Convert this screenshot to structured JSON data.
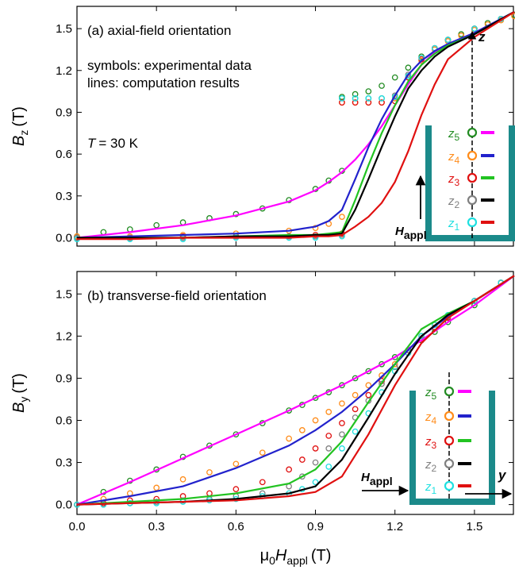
{
  "chart_data": [
    {
      "type": "line",
      "title": "(a) axial-field orientation",
      "annotations": [
        "symbols: experimental data",
        "lines: computation results"
      ],
      "temperature": {
        "symbol": "T",
        "text": "= 30 K"
      },
      "y_label": {
        "symbol": "B",
        "sub": "z",
        "unit": "(T)"
      },
      "xlim": [
        0,
        1.65
      ],
      "ylim": [
        -0.06,
        1.66
      ],
      "xticks": [
        {
          "value": 0,
          "label": "0.0"
        },
        0.3,
        0.6,
        0.9,
        1.2,
        1.5
      ],
      "xtick_labels": false,
      "yticks": [
        {
          "value": 0,
          "label": "0.0"
        },
        0.3,
        0.6,
        0.9,
        1.2,
        1.5
      ],
      "series": [
        {
          "style": "symbols",
          "color": "#228b22",
          "x": [
            0,
            0.1,
            0.2,
            0.3,
            0.4,
            0.5,
            0.6,
            0.7,
            0.8,
            0.9,
            0.95,
            1.0,
            1.0,
            1.05,
            1.1,
            1.15,
            1.2,
            1.25,
            1.3,
            1.35,
            1.4,
            1.45,
            1.5,
            1.55,
            1.6,
            1.65
          ],
          "values": [
            0.01,
            0.04,
            0.06,
            0.09,
            0.11,
            0.14,
            0.17,
            0.21,
            0.27,
            0.35,
            0.41,
            0.48,
            1.01,
            1.03,
            1.05,
            1.09,
            1.15,
            1.22,
            1.3,
            1.36,
            1.42,
            1.46,
            1.5,
            1.54,
            1.57,
            1.6
          ]
        },
        {
          "style": "symbols",
          "color": "#ff8c1a",
          "x": [
            0,
            0.2,
            0.4,
            0.6,
            0.8,
            0.9,
            0.95,
            1.0,
            1.0,
            1.05,
            1.1,
            1.15,
            1.2,
            1.25,
            1.3,
            1.35,
            1.4,
            1.45,
            1.5,
            1.55,
            1.6,
            1.65
          ],
          "values": [
            0.01,
            0.01,
            0.02,
            0.03,
            0.05,
            0.07,
            0.1,
            0.15,
            0.97,
            0.97,
            0.97,
            0.97,
            1.0,
            1.15,
            1.27,
            1.35,
            1.41,
            1.45,
            1.49,
            1.53,
            1.56,
            1.59
          ]
        },
        {
          "style": "symbols",
          "color": "#e01010",
          "x": [
            0,
            0.2,
            0.4,
            0.6,
            0.8,
            0.9,
            1.0,
            1.0,
            1.05,
            1.1,
            1.15,
            1.2,
            1.25,
            1.3,
            1.35,
            1.4,
            1.5,
            1.6
          ],
          "values": [
            0,
            0,
            0.01,
            0.01,
            0.01,
            0.02,
            0.03,
            0.97,
            0.97,
            0.97,
            0.97,
            0.98,
            1.15,
            1.28,
            1.36,
            1.42,
            1.5,
            1.57
          ]
        },
        {
          "style": "symbols",
          "color": "#808080",
          "x": [
            0,
            0.2,
            0.4,
            0.6,
            0.8,
            0.9,
            1.0,
            1.0,
            1.05,
            1.1,
            1.15,
            1.2,
            1.25,
            1.3,
            1.35,
            1.4,
            1.5,
            1.6
          ],
          "values": [
            0,
            0,
            0,
            0.01,
            0.01,
            0.01,
            0.02,
            1.0,
            1.0,
            1.0,
            1.0,
            1.02,
            1.17,
            1.29,
            1.36,
            1.42,
            1.5,
            1.57
          ]
        },
        {
          "style": "symbols",
          "color": "#1ee0e0",
          "x": [
            0,
            0.2,
            0.4,
            0.6,
            0.8,
            0.9,
            1.0,
            1.0,
            1.05,
            1.1,
            1.15,
            1.2,
            1.25,
            1.3,
            1.35,
            1.4,
            1.5,
            1.6
          ],
          "values": [
            -0.01,
            -0.01,
            -0.01,
            0,
            0,
            0,
            0.01,
            1.0,
            1.0,
            1.0,
            1.0,
            1.01,
            1.16,
            1.29,
            1.36,
            1.42,
            1.5,
            1.57
          ]
        },
        {
          "style": "line",
          "color": "#ff00ff",
          "x": [
            0,
            0.2,
            0.4,
            0.6,
            0.8,
            0.9,
            0.95,
            1.0,
            1.05,
            1.1,
            1.15,
            1.2,
            1.25,
            1.3,
            1.35,
            1.4,
            1.5,
            1.65
          ],
          "values": [
            0,
            0.04,
            0.09,
            0.16,
            0.26,
            0.34,
            0.4,
            0.47,
            0.56,
            0.67,
            0.8,
            0.95,
            1.1,
            1.24,
            1.33,
            1.39,
            1.47,
            1.62
          ]
        },
        {
          "style": "line",
          "color": "#2222cc",
          "x": [
            0,
            0.2,
            0.4,
            0.6,
            0.8,
            0.9,
            0.95,
            1.0,
            1.05,
            1.1,
            1.15,
            1.2,
            1.25,
            1.3,
            1.35,
            1.4,
            1.5,
            1.65
          ],
          "values": [
            0,
            0.01,
            0.02,
            0.03,
            0.05,
            0.08,
            0.12,
            0.2,
            0.42,
            0.65,
            0.85,
            1.02,
            1.17,
            1.27,
            1.34,
            1.39,
            1.47,
            1.62
          ]
        },
        {
          "style": "line",
          "color": "#22c322",
          "x": [
            0,
            0.2,
            0.4,
            0.6,
            0.8,
            0.9,
            0.95,
            1.0,
            1.05,
            1.1,
            1.15,
            1.2,
            1.25,
            1.3,
            1.35,
            1.4,
            1.5,
            1.65
          ],
          "values": [
            0,
            0,
            0,
            0.01,
            0.02,
            0.02,
            0.03,
            0.04,
            0.27,
            0.52,
            0.75,
            0.95,
            1.12,
            1.24,
            1.32,
            1.38,
            1.46,
            1.62
          ]
        },
        {
          "style": "line",
          "color": "#000000",
          "x": [
            0,
            0.2,
            0.4,
            0.6,
            0.8,
            0.9,
            0.95,
            1.0,
            1.05,
            1.1,
            1.15,
            1.2,
            1.25,
            1.3,
            1.35,
            1.4,
            1.5,
            1.65
          ],
          "values": [
            0,
            0,
            0,
            0.01,
            0.01,
            0.02,
            0.02,
            0.03,
            0.2,
            0.42,
            0.65,
            0.87,
            1.07,
            1.2,
            1.3,
            1.37,
            1.46,
            1.62
          ]
        },
        {
          "style": "line",
          "color": "#e01010",
          "x": [
            0,
            0.2,
            0.4,
            0.6,
            0.8,
            0.9,
            0.95,
            1.0,
            1.05,
            1.1,
            1.15,
            1.2,
            1.25,
            1.3,
            1.35,
            1.4,
            1.5,
            1.65
          ],
          "values": [
            -0.01,
            -0.01,
            0,
            0,
            0,
            0.01,
            0.01,
            0.02,
            0.08,
            0.15,
            0.25,
            0.4,
            0.62,
            0.88,
            1.1,
            1.28,
            1.44,
            1.62
          ]
        }
      ],
      "inset": {
        "axis_label": "z",
        "field": {
          "symbol": "H",
          "sub": "appl"
        },
        "sensors": [
          {
            "symbol": "z",
            "sub": "1",
            "symbol_color": "#1ee0e0",
            "line_color": "#e01010"
          },
          {
            "symbol": "z",
            "sub": "2",
            "symbol_color": "#808080",
            "line_color": "#000000"
          },
          {
            "symbol": "z",
            "sub": "3",
            "symbol_color": "#e01010",
            "line_color": "#22c322"
          },
          {
            "symbol": "z",
            "sub": "4",
            "symbol_color": "#ff8c1a",
            "line_color": "#2222cc"
          },
          {
            "symbol": "z",
            "sub": "5",
            "symbol_color": "#228b22",
            "line_color": "#ff00ff"
          }
        ]
      }
    },
    {
      "type": "line",
      "title": "(b) transverse-field orientation",
      "y_label": {
        "symbol": "B",
        "sub": "y",
        "unit": "(T)"
      },
      "x_label": {
        "prefix": "μ",
        "prefix_sub": "0",
        "symbol": "H",
        "sub": "appl",
        "unit": "(T)"
      },
      "xlim": [
        0,
        1.65
      ],
      "ylim": [
        -0.07,
        1.66
      ],
      "xticks": [
        {
          "value": 0,
          "label": "0.0"
        },
        0.3,
        0.6,
        0.9,
        1.2,
        1.5
      ],
      "xtick_labels": true,
      "yticks": [
        {
          "value": 0,
          "label": "0.0"
        },
        0.3,
        0.6,
        0.9,
        1.2,
        1.5
      ],
      "series": [
        {
          "style": "symbols",
          "color": "#228b22",
          "x": [
            0,
            0.1,
            0.2,
            0.3,
            0.4,
            0.5,
            0.6,
            0.7,
            0.8,
            0.85,
            0.9,
            0.95,
            1.0,
            1.05,
            1.1,
            1.15,
            1.2,
            1.25,
            1.3,
            1.35,
            1.4,
            1.5,
            1.6
          ],
          "values": [
            0,
            0.09,
            0.17,
            0.25,
            0.34,
            0.42,
            0.5,
            0.58,
            0.67,
            0.71,
            0.76,
            0.8,
            0.85,
            0.9,
            0.95,
            1.0,
            1.05,
            1.1,
            1.17,
            1.23,
            1.3,
            1.42,
            1.58
          ]
        },
        {
          "style": "symbols",
          "color": "#ff8c1a",
          "x": [
            0,
            0.1,
            0.2,
            0.3,
            0.4,
            0.5,
            0.6,
            0.7,
            0.8,
            0.85,
            0.9,
            0.95,
            1.0,
            1.05,
            1.1,
            1.15,
            1.2,
            1.25,
            1.3,
            1.35,
            1.4,
            1.5,
            1.6
          ],
          "values": [
            0,
            0.04,
            0.08,
            0.12,
            0.18,
            0.23,
            0.29,
            0.37,
            0.47,
            0.53,
            0.6,
            0.66,
            0.72,
            0.78,
            0.85,
            0.92,
            1.0,
            1.1,
            1.2,
            1.28,
            1.34,
            1.45,
            1.58
          ]
        },
        {
          "style": "symbols",
          "color": "#e01010",
          "x": [
            0,
            0.1,
            0.2,
            0.3,
            0.4,
            0.5,
            0.6,
            0.7,
            0.8,
            0.85,
            0.9,
            0.95,
            1.0,
            1.05,
            1.1,
            1.15,
            1.2,
            1.25,
            1.3,
            1.35,
            1.4,
            1.5,
            1.6
          ],
          "values": [
            0,
            0.01,
            0.03,
            0.04,
            0.06,
            0.08,
            0.11,
            0.16,
            0.25,
            0.32,
            0.4,
            0.49,
            0.58,
            0.68,
            0.78,
            0.88,
            0.98,
            1.08,
            1.18,
            1.26,
            1.33,
            1.45,
            1.58
          ]
        },
        {
          "style": "symbols",
          "color": "#808080",
          "x": [
            0,
            0.1,
            0.2,
            0.3,
            0.4,
            0.5,
            0.6,
            0.7,
            0.8,
            0.85,
            0.9,
            0.95,
            1.0,
            1.05,
            1.1,
            1.15,
            1.2,
            1.25,
            1.3,
            1.35,
            1.4,
            1.5,
            1.6
          ],
          "values": [
            0,
            0,
            0.01,
            0.02,
            0.03,
            0.04,
            0.06,
            0.08,
            0.13,
            0.2,
            0.3,
            0.4,
            0.5,
            0.62,
            0.74,
            0.86,
            0.98,
            1.1,
            1.2,
            1.28,
            1.34,
            1.45,
            1.58
          ]
        },
        {
          "style": "symbols",
          "color": "#1ee0e0",
          "x": [
            0,
            0.1,
            0.2,
            0.3,
            0.4,
            0.5,
            0.6,
            0.7,
            0.8,
            0.85,
            0.9,
            0.95,
            1.0,
            1.05,
            1.1,
            1.15,
            1.2,
            1.25,
            1.3,
            1.35,
            1.4,
            1.5,
            1.6
          ],
          "values": [
            0,
            0,
            0.01,
            0.01,
            0.02,
            0.03,
            0.04,
            0.06,
            0.08,
            0.11,
            0.16,
            0.27,
            0.4,
            0.52,
            0.65,
            0.8,
            0.95,
            1.08,
            1.2,
            1.28,
            1.35,
            1.45,
            1.58
          ]
        },
        {
          "style": "line",
          "color": "#ff00ff",
          "x": [
            0,
            0.2,
            0.4,
            0.6,
            0.8,
            0.9,
            1.0,
            1.1,
            1.2,
            1.3,
            1.4,
            1.5,
            1.65
          ],
          "values": [
            0,
            0.16,
            0.33,
            0.5,
            0.67,
            0.76,
            0.85,
            0.95,
            1.05,
            1.17,
            1.3,
            1.42,
            1.63
          ]
        },
        {
          "style": "line",
          "color": "#2222cc",
          "x": [
            0,
            0.2,
            0.4,
            0.6,
            0.8,
            0.9,
            1.0,
            1.1,
            1.2,
            1.3,
            1.4,
            1.5,
            1.65
          ],
          "values": [
            0,
            0.06,
            0.13,
            0.26,
            0.42,
            0.53,
            0.66,
            0.82,
            1.0,
            1.2,
            1.34,
            1.45,
            1.63
          ]
        },
        {
          "style": "line",
          "color": "#22c322",
          "x": [
            0,
            0.2,
            0.4,
            0.6,
            0.8,
            0.9,
            1.0,
            1.1,
            1.2,
            1.3,
            1.4,
            1.5,
            1.65
          ],
          "values": [
            0,
            0.02,
            0.04,
            0.08,
            0.15,
            0.25,
            0.45,
            0.73,
            1.0,
            1.25,
            1.36,
            1.45,
            1.63
          ]
        },
        {
          "style": "line",
          "color": "#000000",
          "x": [
            0,
            0.2,
            0.4,
            0.6,
            0.8,
            0.9,
            1.0,
            1.1,
            1.2,
            1.3,
            1.4,
            1.5,
            1.65
          ],
          "values": [
            0,
            0.01,
            0.02,
            0.04,
            0.08,
            0.13,
            0.32,
            0.62,
            0.93,
            1.2,
            1.35,
            1.45,
            1.63
          ]
        },
        {
          "style": "line",
          "color": "#e01010",
          "x": [
            0,
            0.2,
            0.4,
            0.6,
            0.8,
            0.9,
            1.0,
            1.1,
            1.2,
            1.3,
            1.4,
            1.5,
            1.65
          ],
          "values": [
            0,
            0.01,
            0.02,
            0.03,
            0.06,
            0.09,
            0.2,
            0.5,
            0.85,
            1.15,
            1.33,
            1.45,
            1.63
          ]
        }
      ],
      "inset": {
        "axis_label": "y",
        "field": {
          "symbol": "H",
          "sub": "appl"
        },
        "sensors": [
          {
            "symbol": "z",
            "sub": "1",
            "symbol_color": "#1ee0e0",
            "line_color": "#e01010"
          },
          {
            "symbol": "z",
            "sub": "2",
            "symbol_color": "#808080",
            "line_color": "#000000"
          },
          {
            "symbol": "z",
            "sub": "3",
            "symbol_color": "#e01010",
            "line_color": "#22c322"
          },
          {
            "symbol": "z",
            "sub": "4",
            "symbol_color": "#ff8c1a",
            "line_color": "#2222cc"
          },
          {
            "symbol": "z",
            "sub": "5",
            "symbol_color": "#228b22",
            "line_color": "#ff00ff"
          }
        ]
      }
    }
  ]
}
